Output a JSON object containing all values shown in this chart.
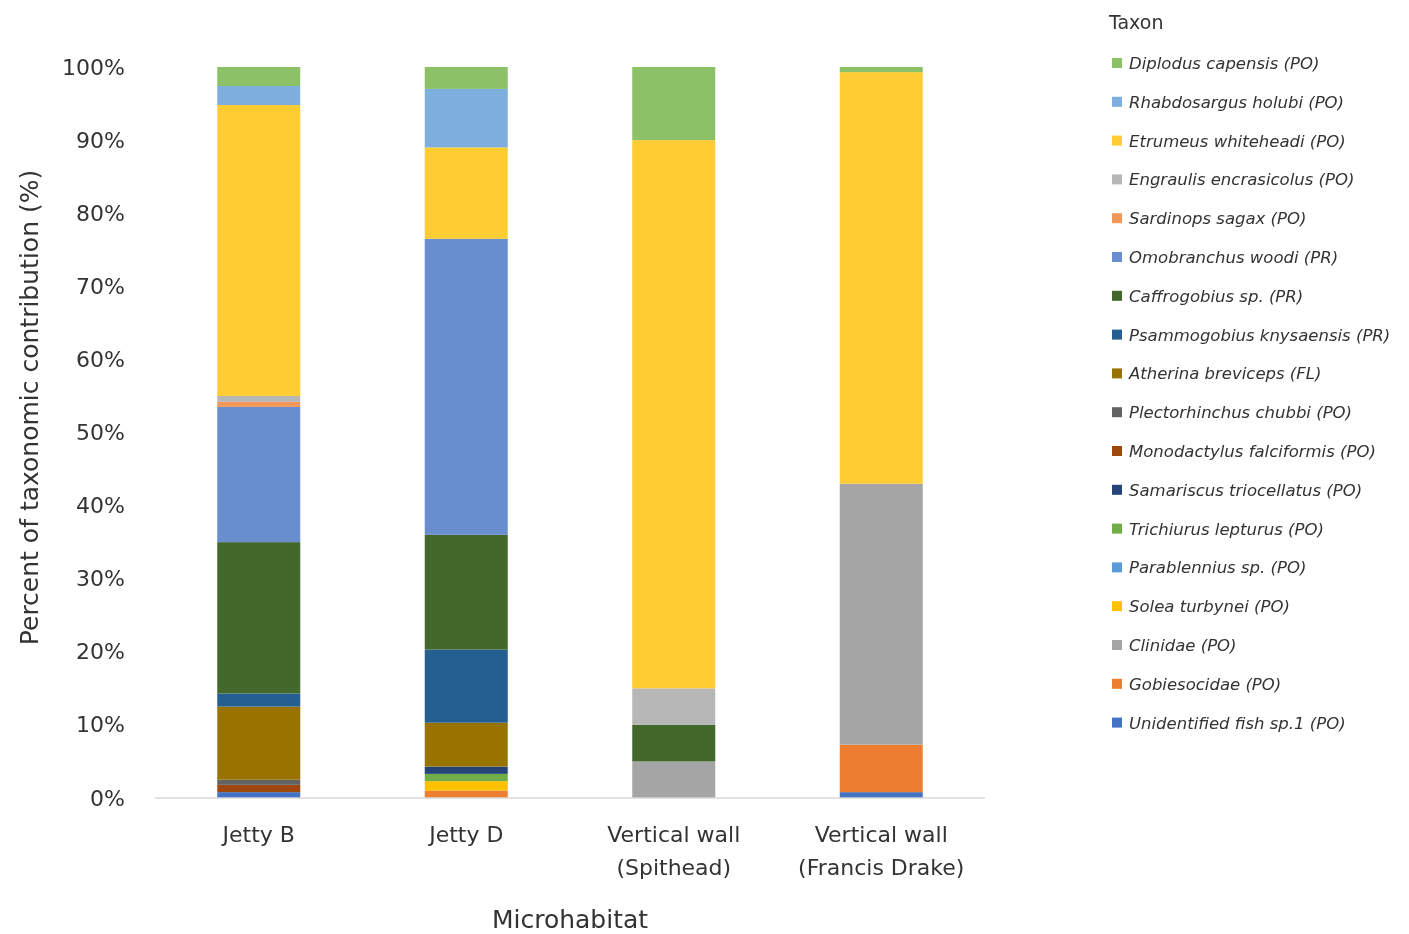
{
  "chart_data": {
    "type": "bar",
    "stacked": true,
    "categories": [
      "Jetty B",
      "Jetty D",
      "Vertical wall (Spithead)",
      "Vertical wall (Francis Drake)"
    ],
    "xlabel": "Microhabitat",
    "ylabel": "Percent of taxonomic contribution (%)",
    "legend_title": "Taxon",
    "legend": "right",
    "ylim": [
      0,
      100
    ],
    "yticks": [
      {
        "value": 0,
        "label": "0%"
      },
      {
        "value": 10,
        "label": "10%"
      },
      {
        "value": 20,
        "label": "20%"
      },
      {
        "value": 30,
        "label": "30%"
      },
      {
        "value": 40,
        "label": "40%"
      },
      {
        "value": 50,
        "label": "50%"
      },
      {
        "value": 60,
        "label": "60%"
      },
      {
        "value": 70,
        "label": "70%"
      },
      {
        "value": 80,
        "label": "80%"
      },
      {
        "value": 90,
        "label": "90%"
      },
      {
        "value": 100,
        "label": "100%"
      }
    ],
    "series": [
      {
        "name": "Unidentified fish sp.1 (PO)",
        "color": "#4472c4",
        "values": [
          0.8,
          0,
          0,
          0.8
        ]
      },
      {
        "name": "Gobiesocidae (PO)",
        "color": "#ed7d31",
        "values": [
          0,
          1.0,
          0,
          6.5
        ]
      },
      {
        "name": "Clinidae (PO)",
        "color": "#a5a5a5",
        "values": [
          0,
          0,
          5,
          35.7
        ]
      },
      {
        "name": "Solea turbynei (PO)",
        "color": "#ffc000",
        "values": [
          0,
          1.3,
          0,
          0
        ]
      },
      {
        "name": "Parablennius sp. (PO)",
        "color": "#5b9bd5",
        "values": [
          0,
          0,
          0,
          0
        ]
      },
      {
        "name": "Trichiurus lepturus (PO)",
        "color": "#70ad47",
        "values": [
          0,
          1.0,
          0,
          0
        ]
      },
      {
        "name": "Samariscus triocellatus (PO)",
        "color": "#264478",
        "values": [
          0,
          1.0,
          0,
          0
        ]
      },
      {
        "name": "Monodactylus falciformis (PO)",
        "color": "#9e480e",
        "values": [
          1.0,
          0,
          0,
          0
        ]
      },
      {
        "name": "Plectorhinchus chubbi (PO)",
        "color": "#636363",
        "values": [
          0.7,
          0,
          0,
          0
        ]
      },
      {
        "name": "Atherina breviceps (FL)",
        "color": "#997300",
        "values": [
          10.0,
          6.0,
          0,
          0
        ]
      },
      {
        "name": "Psammogobius knysaensis (PR)",
        "color": "#255e91",
        "values": [
          1.8,
          10.0,
          0,
          0
        ]
      },
      {
        "name": "Caffrogobius sp. (PR)",
        "color": "#43682b",
        "values": [
          20.7,
          15.7,
          5,
          0
        ]
      },
      {
        "name": "Omobranchus woodi (PR)",
        "color": "#698ed0",
        "values": [
          18.5,
          40.5,
          0,
          0
        ]
      },
      {
        "name": "Sardinops sagax (PO)",
        "color": "#f1975a",
        "values": [
          0.7,
          0,
          0,
          0
        ]
      },
      {
        "name": "Engraulis encrasicolus (PO)",
        "color": "#b7b7b7",
        "values": [
          0.8,
          0,
          5,
          0
        ]
      },
      {
        "name": "Etrumeus whiteheadi (PO)",
        "color": "#ffcd33",
        "values": [
          39.8,
          12.5,
          75,
          56.3
        ]
      },
      {
        "name": "Rhabdosargus holubi (PO)",
        "color": "#7cafdd",
        "values": [
          2.6,
          8.0,
          0,
          0
        ]
      },
      {
        "name": "Diplodus capensis (PO)",
        "color": "#8cc168",
        "values": [
          2.6,
          3.0,
          10,
          0.7
        ]
      }
    ]
  }
}
